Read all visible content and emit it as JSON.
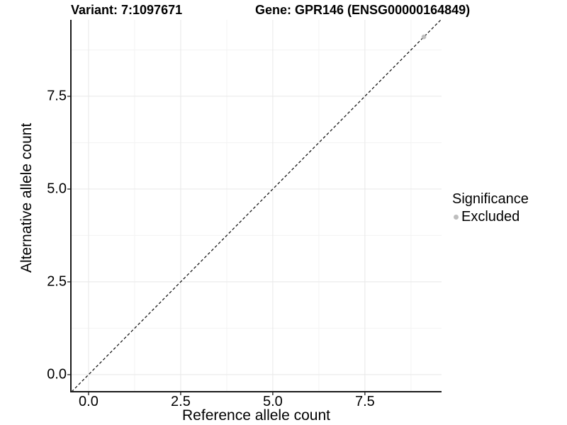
{
  "chart_data": {
    "type": "scatter",
    "title_left": "Variant: 7:1097671",
    "title_right": "Gene: GPR146 (ENSG00000164849)",
    "xlabel": "Reference allele count",
    "ylabel": "Alternative allele count",
    "xlim": [
      -0.48,
      9.58
    ],
    "ylim": [
      -0.46,
      9.56
    ],
    "x_ticks": {
      "values": [
        0,
        2.5,
        5,
        7.5
      ],
      "labels": [
        "0.0",
        "2.5",
        "5.0",
        "7.5"
      ]
    },
    "y_ticks": {
      "values": [
        0,
        2.5,
        5,
        7.5
      ],
      "labels": [
        "0.0",
        "2.5",
        "5.0",
        "7.5"
      ]
    },
    "x_minor_ticks": [
      1.25,
      3.75,
      6.25,
      8.75
    ],
    "y_minor_ticks": [
      1.25,
      3.75,
      6.25,
      8.75
    ],
    "grid": true,
    "legend": {
      "title": "Significance",
      "position": "right",
      "items": [
        {
          "label": "Excluded",
          "color": "#bebebe"
        }
      ]
    },
    "series": [
      {
        "name": "Excluded",
        "color": "#bebebe",
        "points": [
          [
            9.1,
            9.1
          ]
        ]
      }
    ],
    "reference_line": {
      "equation": "y = x",
      "style": "dashed",
      "color": "#1a1a1a"
    }
  },
  "colors": {
    "background": "#ffffff",
    "grid_major": "#e8e8e8",
    "grid_minor": "#f3f3f3",
    "axis_line": "#1a1a1a",
    "text": "#000000",
    "point": "#bebebe"
  }
}
